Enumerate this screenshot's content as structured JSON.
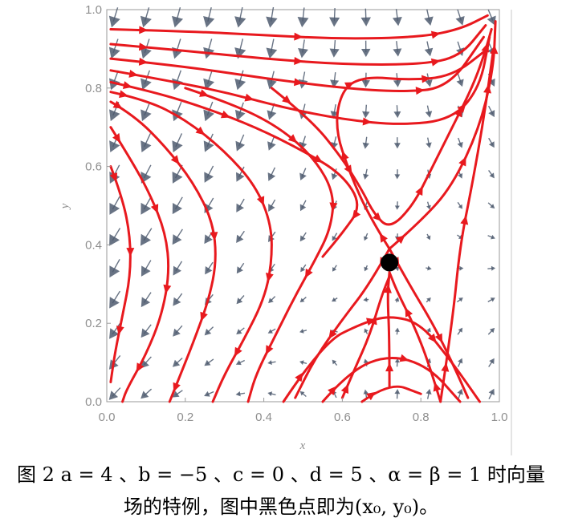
{
  "chart_data": {
    "type": "streamplot",
    "title": "",
    "xlabel": "x",
    "ylabel": "y",
    "xlim": [
      0.0,
      1.0
    ],
    "ylim": [
      0.0,
      1.0
    ],
    "xticks": [
      "0.0",
      "0.2",
      "0.4",
      "0.6",
      "0.8",
      "1.0"
    ],
    "yticks": [
      "0.0",
      "0.2",
      "0.4",
      "0.6",
      "0.8",
      "1.0"
    ],
    "grid": false,
    "equilibrium_point": {
      "x": 0.72,
      "y": 0.355,
      "color": "#000000"
    },
    "stream_color": "#e8191e",
    "arrow_color": "#4d5b6e",
    "streamlines": [
      [
        [
          0.01,
          0.95
        ],
        [
          0.2,
          0.945
        ],
        [
          0.4,
          0.935
        ],
        [
          0.6,
          0.925
        ],
        [
          0.8,
          0.93
        ],
        [
          0.9,
          0.95
        ],
        [
          0.97,
          0.985
        ]
      ],
      [
        [
          0.01,
          0.912
        ],
        [
          0.2,
          0.895
        ],
        [
          0.4,
          0.875
        ],
        [
          0.6,
          0.86
        ],
        [
          0.8,
          0.86
        ],
        [
          0.9,
          0.88
        ],
        [
          0.965,
          0.96
        ]
      ],
      [
        [
          0.01,
          0.875
        ],
        [
          0.2,
          0.855
        ],
        [
          0.4,
          0.825
        ],
        [
          0.6,
          0.8
        ],
        [
          0.75,
          0.79
        ],
        [
          0.87,
          0.8
        ],
        [
          0.96,
          0.93
        ]
      ],
      [
        [
          0.01,
          0.845
        ],
        [
          0.15,
          0.82
        ],
        [
          0.3,
          0.79
        ],
        [
          0.45,
          0.75
        ],
        [
          0.6,
          0.72
        ],
        [
          0.75,
          0.705
        ],
        [
          0.88,
          0.72
        ],
        [
          0.95,
          0.8
        ],
        [
          0.975,
          0.93
        ]
      ],
      [
        [
          0.01,
          0.815
        ],
        [
          0.12,
          0.79
        ],
        [
          0.25,
          0.75
        ],
        [
          0.38,
          0.7
        ],
        [
          0.5,
          0.64
        ],
        [
          0.6,
          0.58
        ],
        [
          0.65,
          0.5
        ],
        [
          0.6,
          0.43
        ],
        [
          0.55,
          0.37
        ]
      ],
      [
        [
          0.01,
          0.79
        ],
        [
          0.1,
          0.77
        ],
        [
          0.2,
          0.72
        ],
        [
          0.3,
          0.64
        ],
        [
          0.38,
          0.55
        ],
        [
          0.42,
          0.45
        ],
        [
          0.42,
          0.35
        ],
        [
          0.4,
          0.26
        ],
        [
          0.35,
          0.16
        ],
        [
          0.3,
          0.07
        ],
        [
          0.27,
          0.0
        ]
      ],
      [
        [
          0.01,
          0.765
        ],
        [
          0.07,
          0.73
        ],
        [
          0.15,
          0.65
        ],
        [
          0.22,
          0.56
        ],
        [
          0.27,
          0.46
        ],
        [
          0.28,
          0.36
        ],
        [
          0.26,
          0.26
        ],
        [
          0.22,
          0.15
        ],
        [
          0.18,
          0.05
        ],
        [
          0.16,
          0.0
        ]
      ],
      [
        [
          0.01,
          0.7
        ],
        [
          0.06,
          0.62
        ],
        [
          0.11,
          0.53
        ],
        [
          0.15,
          0.43
        ],
        [
          0.16,
          0.33
        ],
        [
          0.14,
          0.22
        ],
        [
          0.1,
          0.12
        ],
        [
          0.05,
          0.03
        ],
        [
          0.04,
          0.0
        ]
      ],
      [
        [
          0.01,
          0.6
        ],
        [
          0.04,
          0.52
        ],
        [
          0.06,
          0.42
        ],
        [
          0.06,
          0.32
        ],
        [
          0.04,
          0.22
        ],
        [
          0.02,
          0.12
        ],
        [
          0.01,
          0.05
        ]
      ],
      [
        [
          0.2,
          0.8
        ],
        [
          0.32,
          0.76
        ],
        [
          0.44,
          0.7
        ],
        [
          0.53,
          0.62
        ],
        [
          0.58,
          0.53
        ],
        [
          0.57,
          0.44
        ],
        [
          0.53,
          0.36
        ],
        [
          0.48,
          0.27
        ],
        [
          0.43,
          0.17
        ],
        [
          0.38,
          0.07
        ],
        [
          0.36,
          0.0
        ]
      ],
      [
        [
          0.42,
          0.8
        ],
        [
          0.52,
          0.72
        ],
        [
          0.6,
          0.62
        ],
        [
          0.65,
          0.54
        ],
        [
          0.68,
          0.48
        ],
        [
          0.72,
          0.44
        ],
        [
          0.78,
          0.5
        ],
        [
          0.83,
          0.6
        ],
        [
          0.88,
          0.7
        ],
        [
          0.93,
          0.8
        ],
        [
          0.96,
          0.88
        ],
        [
          0.98,
          0.95
        ]
      ],
      [
        [
          0.72,
          0.04
        ],
        [
          0.72,
          0.16
        ],
        [
          0.715,
          0.27
        ],
        [
          0.72,
          0.33
        ]
      ],
      [
        [
          0.85,
          0.0
        ],
        [
          0.82,
          0.1
        ],
        [
          0.78,
          0.2
        ],
        [
          0.74,
          0.28
        ],
        [
          0.72,
          0.33
        ]
      ],
      [
        [
          0.6,
          0.01
        ],
        [
          0.63,
          0.08
        ],
        [
          0.67,
          0.17
        ],
        [
          0.7,
          0.27
        ],
        [
          0.72,
          0.32
        ]
      ],
      [
        [
          0.72,
          0.39
        ],
        [
          0.67,
          0.3
        ],
        [
          0.6,
          0.21
        ],
        [
          0.53,
          0.11
        ],
        [
          0.48,
          0.01
        ]
      ],
      [
        [
          0.72,
          0.39
        ],
        [
          0.77,
          0.3
        ],
        [
          0.83,
          0.2
        ],
        [
          0.88,
          0.1
        ],
        [
          0.92,
          0.01
        ]
      ],
      [
        [
          0.72,
          0.39
        ],
        [
          0.8,
          0.46
        ],
        [
          0.88,
          0.55
        ],
        [
          0.95,
          0.7
        ],
        [
          0.985,
          0.85
        ],
        [
          0.99,
          0.97
        ]
      ],
      [
        [
          0.72,
          0.39
        ],
        [
          0.67,
          0.47
        ],
        [
          0.62,
          0.58
        ],
        [
          0.58,
          0.7
        ],
        [
          0.6,
          0.8
        ],
        [
          0.66,
          0.83
        ],
        [
          0.77,
          0.82
        ],
        [
          0.88,
          0.83
        ],
        [
          0.97,
          0.9
        ]
      ],
      [
        [
          0.85,
          0.0
        ],
        [
          0.88,
          0.2
        ],
        [
          0.9,
          0.4
        ],
        [
          0.93,
          0.55
        ],
        [
          0.96,
          0.72
        ],
        [
          0.985,
          0.9
        ]
      ],
      [
        [
          0.65,
          0.0
        ],
        [
          0.72,
          0.05
        ],
        [
          0.8,
          0.02
        ]
      ],
      [
        [
          0.55,
          0.0
        ],
        [
          0.62,
          0.08
        ],
        [
          0.72,
          0.12
        ],
        [
          0.82,
          0.09
        ],
        [
          0.9,
          0.0
        ]
      ],
      [
        [
          0.45,
          0.0
        ],
        [
          0.55,
          0.15
        ],
        [
          0.65,
          0.2
        ],
        [
          0.72,
          0.22
        ],
        [
          0.8,
          0.2
        ],
        [
          0.88,
          0.1
        ],
        [
          0.95,
          0.0
        ]
      ]
    ]
  },
  "caption": {
    "line1": "图 2  a = 4 、b = −5 、c = 0 、d = 5 、α = β = 1 时向量",
    "line2": "场的特例，图中黑色点即为(x₀, y₀)。"
  }
}
